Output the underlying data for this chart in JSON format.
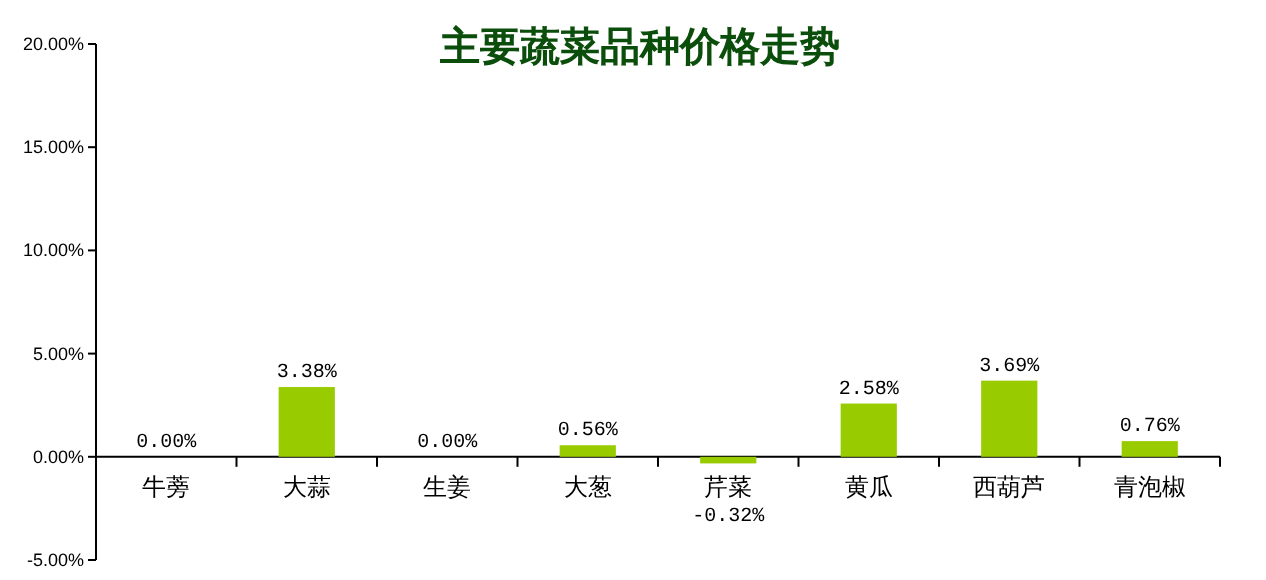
{
  "chart_data": {
    "type": "bar",
    "title": "主要蔬菜品种价格走势",
    "categories": [
      "牛蒡",
      "大蒜",
      "生姜",
      "大葱",
      "芹菜",
      "黄瓜",
      "西葫芦",
      "青泡椒"
    ],
    "values": [
      0.0,
      3.38,
      0.0,
      0.56,
      -0.32,
      2.58,
      3.69,
      0.76
    ],
    "value_labels": [
      "0.00%",
      "3.38%",
      "0.00%",
      "0.56%",
      "-0.32%",
      "2.58%",
      "3.69%",
      "0.76%"
    ],
    "color": "#99cc00",
    "ylim": [
      -5,
      20
    ],
    "yticks": [
      {
        "value": -5,
        "label": "-5.00%"
      },
      {
        "value": 0,
        "label": "0.00%"
      },
      {
        "value": 5,
        "label": "5.00%"
      },
      {
        "value": 10,
        "label": "10.00%"
      },
      {
        "value": 15,
        "label": "15.00%"
      },
      {
        "value": 20,
        "label": "20.00%"
      }
    ],
    "grid": false
  }
}
